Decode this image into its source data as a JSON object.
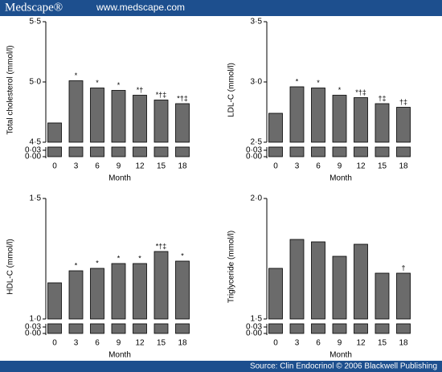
{
  "banner": {
    "logo": "Medscape®",
    "url": "www.medscape.com"
  },
  "source": "Source: Clin Endocrinol © 2006 Blackwell Publishing",
  "chart_data": [
    {
      "type": "bar",
      "ylabel": "Total cholesterol (mmol/l)",
      "xlabel": "Month",
      "categories": [
        "0",
        "3",
        "6",
        "9",
        "12",
        "15",
        "18"
      ],
      "values": [
        4.66,
        5.01,
        4.95,
        4.93,
        4.89,
        4.85,
        4.82
      ],
      "annotations": [
        null,
        "*",
        "*",
        "*",
        "*†",
        "*†‡",
        "*†‡"
      ],
      "color": "#6b6b6b",
      "ylim": [
        4.5,
        5.5
      ],
      "yticks": [
        {
          "value": 4.5,
          "label": "4·5"
        },
        {
          "value": 5.0,
          "label": "5·0"
        },
        {
          "value": 5.5,
          "label": "5·5"
        }
      ],
      "lower_ylim": [
        0,
        0.03
      ],
      "lower_yticks": [
        {
          "value": 0.03,
          "label": "0·03"
        },
        {
          "value": 0,
          "label": "0·00"
        }
      ]
    },
    {
      "type": "bar",
      "ylabel": "LDL-C (mmol/l)",
      "xlabel": "Month",
      "categories": [
        "0",
        "3",
        "6",
        "9",
        "12",
        "15",
        "18"
      ],
      "values": [
        2.74,
        2.96,
        2.95,
        2.89,
        2.87,
        2.82,
        2.79
      ],
      "annotations": [
        null,
        "*",
        "*",
        "*",
        "*†‡",
        "†‡",
        "†‡"
      ],
      "color": "#6b6b6b",
      "ylim": [
        2.5,
        3.5
      ],
      "yticks": [
        {
          "value": 2.5,
          "label": "2·5"
        },
        {
          "value": 3.0,
          "label": "3·0"
        },
        {
          "value": 3.5,
          "label": "3·5"
        }
      ],
      "lower_ylim": [
        0,
        0.03
      ],
      "lower_yticks": [
        {
          "value": 0.03,
          "label": "0·03"
        },
        {
          "value": 0,
          "label": "0·00"
        }
      ]
    },
    {
      "type": "bar",
      "ylabel": "HDL-C (mmol/l)",
      "xlabel": "Month",
      "categories": [
        "0",
        "3",
        "6",
        "9",
        "12",
        "15",
        "18"
      ],
      "values": [
        1.15,
        1.2,
        1.21,
        1.23,
        1.23,
        1.28,
        1.24
      ],
      "annotations": [
        null,
        "*",
        "*",
        "*",
        "*",
        "*†‡",
        "*"
      ],
      "color": "#6b6b6b",
      "ylim": [
        1.0,
        1.5
      ],
      "yticks": [
        {
          "value": 1.0,
          "label": "1·0"
        },
        {
          "value": 1.5,
          "label": "1·5"
        }
      ],
      "lower_ylim": [
        0,
        0.03
      ],
      "lower_yticks": [
        {
          "value": 0.03,
          "label": "0·03"
        },
        {
          "value": 0,
          "label": "0·00"
        }
      ]
    },
    {
      "type": "bar",
      "ylabel": "Triglyceride (mmol/l)",
      "xlabel": "Month",
      "categories": [
        "0",
        "3",
        "6",
        "9",
        "12",
        "15",
        "18"
      ],
      "values": [
        1.71,
        1.83,
        1.82,
        1.76,
        1.81,
        1.69,
        1.69
      ],
      "annotations": [
        null,
        null,
        null,
        null,
        null,
        null,
        "†"
      ],
      "color": "#6b6b6b",
      "ylim": [
        1.5,
        2.0
      ],
      "yticks": [
        {
          "value": 1.5,
          "label": "1·5"
        },
        {
          "value": 2.0,
          "label": "2·0"
        }
      ],
      "lower_ylim": [
        0,
        0.03
      ],
      "lower_yticks": [
        {
          "value": 0.03,
          "label": "0·03"
        },
        {
          "value": 0,
          "label": "0·00"
        }
      ]
    }
  ]
}
